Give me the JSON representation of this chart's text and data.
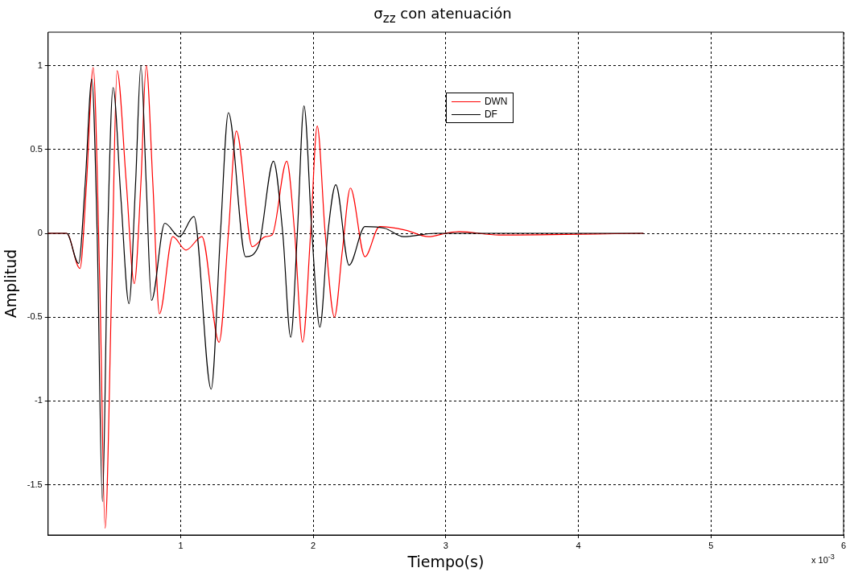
{
  "chart_data": {
    "type": "line",
    "title": "σ$_{zz}$ con atenuación",
    "xlabel": "Tiempo(s)",
    "ylabel": "Amplitud",
    "annotations": [
      "x 10$^{-3}$"
    ],
    "xlim": [
      0,
      6
    ],
    "xticks": [
      1,
      2,
      3,
      4,
      5,
      6
    ],
    "ylim": [
      -1.8,
      1.2
    ],
    "yticks": [
      -1.5,
      -1,
      -0.5,
      0,
      0.5,
      1
    ],
    "grid": true,
    "legend": "top",
    "line_style": "solid",
    "marker": "none",
    "series": [
      {
        "name": "DWN",
        "color": "#ff0000",
        "x": [
          0,
          0.14,
          0.24,
          0.29,
          0.34,
          0.39,
          0.43,
          0.48,
          0.52,
          0.59,
          0.65,
          0.7,
          0.74,
          0.79,
          0.84,
          0.94,
          1.04,
          1.16,
          1.29,
          1.36,
          1.42,
          1.54,
          1.64,
          1.69,
          1.8,
          1.86,
          1.92,
          1.98,
          2.03,
          2.09,
          2.16,
          2.22,
          2.28,
          2.39,
          2.5,
          2.69,
          2.87,
          3.0,
          3.1,
          3.4,
          4.49
        ],
        "values": [
          0,
          0,
          -0.21,
          0.3,
          0.99,
          -0.3,
          -1.76,
          -0.3,
          0.97,
          0.3,
          -0.3,
          0.3,
          1.0,
          0.3,
          -0.48,
          -0.02,
          -0.1,
          -0.02,
          -0.65,
          0,
          0.61,
          -0.08,
          -0.02,
          -0.01,
          0.43,
          0,
          -0.65,
          0,
          0.64,
          0,
          -0.5,
          -0.1,
          0.27,
          -0.14,
          0.04,
          0.02,
          -0.02,
          0,
          0.01,
          -0.01,
          0
        ]
      },
      {
        "name": "DF",
        "color": "#000000",
        "x": [
          0,
          0.14,
          0.23,
          0.28,
          0.33,
          0.37,
          0.41,
          0.45,
          0.49,
          0.55,
          0.61,
          0.66,
          0.7,
          0.74,
          0.78,
          0.88,
          0.99,
          1.1,
          1.23,
          1.3,
          1.36,
          1.49,
          1.59,
          1.7,
          1.77,
          1.83,
          1.88,
          1.93,
          1.99,
          2.05,
          2.11,
          2.17,
          2.27,
          2.39,
          2.54,
          2.68,
          2.92,
          4.49
        ],
        "values": [
          0,
          0,
          -0.18,
          0.3,
          0.92,
          0,
          -1.6,
          0,
          0.87,
          0.2,
          -0.42,
          0.3,
          1.0,
          0.3,
          -0.4,
          0.06,
          -0.02,
          0.1,
          -0.93,
          0,
          0.72,
          -0.14,
          -0.07,
          0.43,
          0,
          -0.62,
          0,
          0.76,
          0,
          -0.56,
          0,
          0.29,
          -0.19,
          0.04,
          0.03,
          -0.02,
          0,
          0
        ]
      }
    ]
  }
}
